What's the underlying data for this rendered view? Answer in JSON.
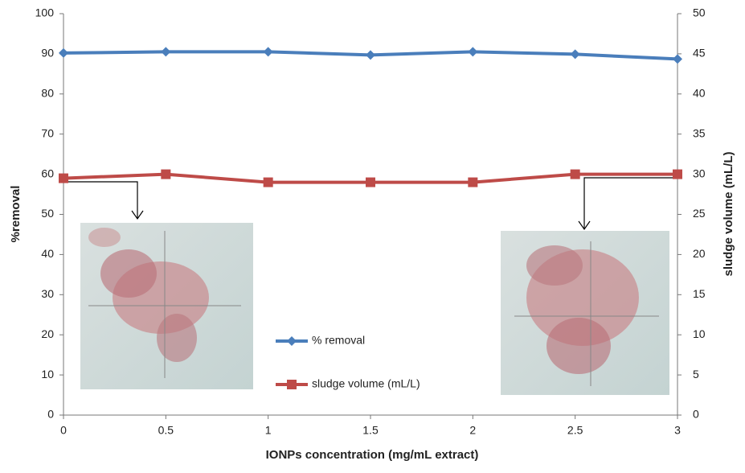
{
  "chart_data": {
    "type": "line",
    "x_label": "IONPs concentration (mg/mL extract)",
    "y_label": "%removal",
    "y2_label": "sludge volume (mL/L)",
    "x": [
      0,
      0.5,
      1,
      1.5,
      2,
      2.5,
      3
    ],
    "xlim": [
      0,
      3
    ],
    "xticks": [
      0,
      0.5,
      1,
      1.5,
      2,
      2.5,
      3
    ],
    "ylim": [
      0,
      100
    ],
    "yticks": [
      0,
      10,
      20,
      30,
      40,
      50,
      60,
      70,
      80,
      90,
      100
    ],
    "y2lim": [
      0,
      50
    ],
    "y2ticks": [
      0,
      5,
      10,
      15,
      20,
      25,
      30,
      35,
      40,
      45,
      50
    ],
    "grid": false,
    "legend": "center",
    "series": [
      {
        "name": "% removal",
        "color": "#4a7ebb",
        "marker": "diamond",
        "values": [
          90.2,
          90.5,
          90.5,
          89.7,
          90.5,
          89.9,
          88.7
        ]
      },
      {
        "name": "sludge volume (mL/L)",
        "color": "#be4b48",
        "marker": "square",
        "axis": "y2",
        "values": [
          29.5,
          30,
          29,
          29,
          29,
          30,
          30
        ]
      }
    ]
  }
}
